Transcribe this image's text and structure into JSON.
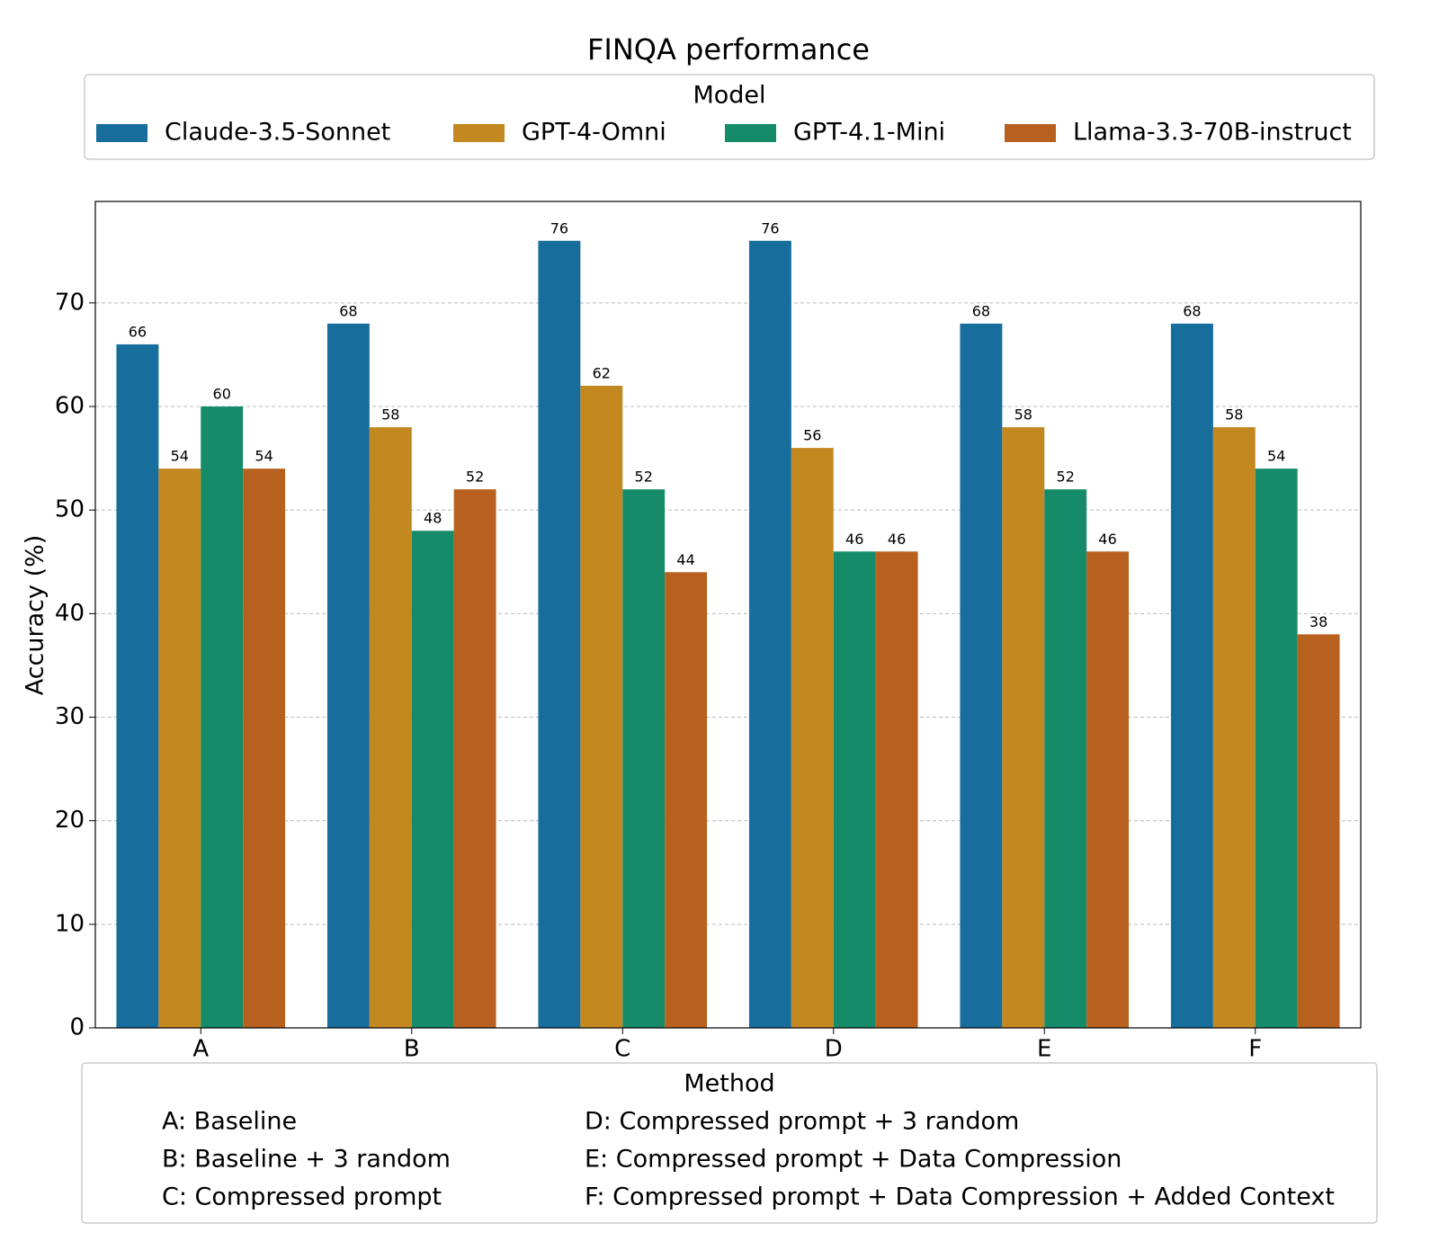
{
  "chart_data": {
    "type": "bar",
    "title": "FINQA performance",
    "legend_title": "Model",
    "y_label": "Accuracy (%)",
    "x_label": "Method",
    "categories": [
      "A",
      "B",
      "C",
      "D",
      "E",
      "F"
    ],
    "category_notes": [
      "A: Baseline",
      "B: Baseline + 3 random",
      "C: Compressed prompt",
      "D: Compressed prompt + 3 random",
      "E: Compressed prompt + Data Compression",
      "F: Compressed prompt + Data Compression + Added Context"
    ],
    "series": [
      {
        "name": "Claude-3.5-Sonnet",
        "color": "#176d9c",
        "values": [
          66,
          68,
          76,
          76,
          68,
          68
        ]
      },
      {
        "name": "GPT-4-Omni",
        "color": "#c38820",
        "values": [
          54,
          58,
          62,
          56,
          58,
          58
        ]
      },
      {
        "name": "GPT-4.1-Mini",
        "color": "#158b6a",
        "values": [
          60,
          48,
          52,
          46,
          52,
          54
        ]
      },
      {
        "name": "Llama-3.3-70B-instruct",
        "color": "#b8611f",
        "values": [
          54,
          52,
          44,
          46,
          46,
          38
        ]
      }
    ],
    "ylim": [
      0,
      79.8
    ],
    "yticks": [
      0,
      10,
      20,
      30,
      40,
      50,
      60,
      70
    ],
    "grid": true
  }
}
